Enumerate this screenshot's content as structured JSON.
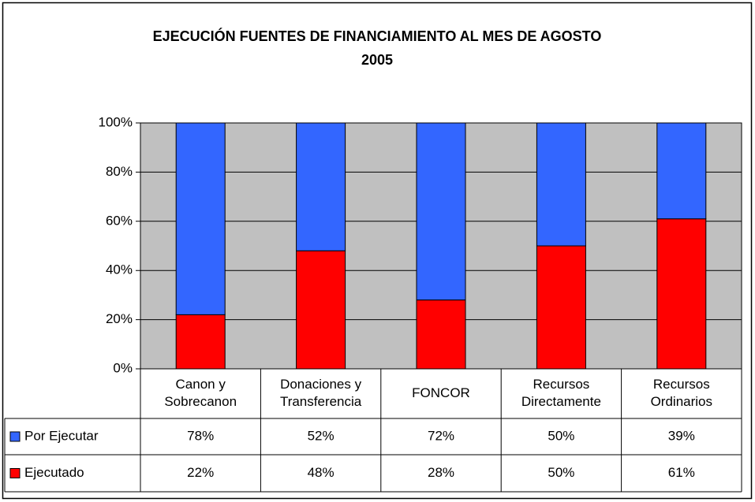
{
  "chart_data": {
    "type": "stacked_bar",
    "title": "EJECUCIÓN FUENTES DE FINANCIAMIENTO AL MES DE AGOSTO",
    "subtitle": "2005",
    "categories": [
      [
        "Canon y",
        "Sobrecanon"
      ],
      [
        "Donaciones y",
        "Transferencia"
      ],
      [
        "FONCOR"
      ],
      [
        "Recursos",
        "Directamente"
      ],
      [
        "Recursos",
        "Ordinarios"
      ]
    ],
    "series": [
      {
        "name": "Por Ejecutar",
        "color": "#3366ff",
        "values": [
          78,
          52,
          72,
          50,
          39
        ],
        "value_labels": [
          "78%",
          "52%",
          "72%",
          "50%",
          "39%"
        ]
      },
      {
        "name": "Ejecutado",
        "color": "#ff0000",
        "values": [
          22,
          48,
          28,
          50,
          61
        ],
        "value_labels": [
          "22%",
          "48%",
          "28%",
          "50%",
          "61%"
        ]
      }
    ],
    "stack_order": [
      "Ejecutado",
      "Por Ejecutar"
    ],
    "ylim": [
      0,
      100
    ],
    "yticks": [
      {
        "value": 0,
        "label": "0%"
      },
      {
        "value": 20,
        "label": "20%"
      },
      {
        "value": 40,
        "label": "40%"
      },
      {
        "value": 60,
        "label": "60%"
      },
      {
        "value": 80,
        "label": "80%"
      },
      {
        "value": 100,
        "label": "100%"
      }
    ],
    "grid": true,
    "plot_background": "#c0c0c0"
  }
}
